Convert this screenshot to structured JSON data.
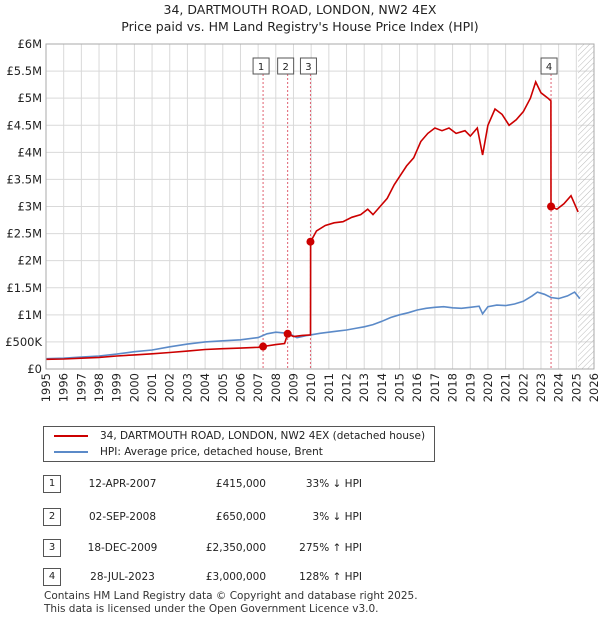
{
  "header": {
    "title": "34, DARTMOUTH ROAD, LONDON, NW2 4EX",
    "subtitle": "Price paid vs. HM Land Registry's House Price Index (HPI)"
  },
  "colors": {
    "property": "#cc0000",
    "hpi": "#5b8ac8",
    "grid": "#d9d9d9",
    "marker_line": "#e06070"
  },
  "legend": {
    "property_label": "34, DARTMOUTH ROAD, LONDON, NW2 4EX (detached house)",
    "hpi_label": "HPI: Average price, detached house, Brent"
  },
  "transactions": [
    {
      "num": "1",
      "date": "12-APR-2007",
      "price": "£415,000",
      "pct": "33% ↓ HPI",
      "hpi": "HPI"
    },
    {
      "num": "2",
      "date": "02-SEP-2008",
      "price": "£650,000",
      "pct": "3% ↓ HPI",
      "hpi": "HPI"
    },
    {
      "num": "3",
      "date": "18-DEC-2009",
      "price": "£2,350,000",
      "pct": "275% ↑ HPI",
      "hpi": "HPI"
    },
    {
      "num": "4",
      "date": "28-JUL-2023",
      "price": "£3,000,000",
      "pct": "128% ↑ HPI",
      "hpi": "HPI"
    }
  ],
  "footer": {
    "line1": "Contains HM Land Registry data © Copyright and database right 2025.",
    "line2": "This data is licensed under the Open Government Licence v3.0."
  },
  "chart_data": {
    "type": "line",
    "title": "34, DARTMOUTH ROAD, LONDON, NW2 4EX",
    "subtitle": "Price paid vs. HM Land Registry's House Price Index (HPI)",
    "xlim": [
      1995,
      2026
    ],
    "ylim": [
      0,
      6000000
    ],
    "x_ticks": [
      1995,
      1996,
      1997,
      1998,
      1999,
      2000,
      2001,
      2002,
      2003,
      2004,
      2005,
      2006,
      2007,
      2008,
      2009,
      2010,
      2011,
      2012,
      2013,
      2014,
      2015,
      2016,
      2017,
      2018,
      2019,
      2020,
      2021,
      2022,
      2023,
      2024,
      2025,
      2026
    ],
    "y_ticks": [
      {
        "value": 0,
        "label": "£0"
      },
      {
        "value": 500000,
        "label": "£500K"
      },
      {
        "value": 1000000,
        "label": "£1M"
      },
      {
        "value": 1500000,
        "label": "£1.5M"
      },
      {
        "value": 2000000,
        "label": "£2M"
      },
      {
        "value": 2500000,
        "label": "£2.5M"
      },
      {
        "value": 3000000,
        "label": "£3M"
      },
      {
        "value": 3500000,
        "label": "£3.5M"
      },
      {
        "value": 4000000,
        "label": "£4M"
      },
      {
        "value": 4500000,
        "label": "£4.5M"
      },
      {
        "value": 5000000,
        "label": "£5M"
      },
      {
        "value": 5500000,
        "label": "£5.5M"
      },
      {
        "value": 6000000,
        "label": "£6M"
      }
    ],
    "grid": true,
    "legend_position": "below",
    "series": [
      {
        "name": "34, DARTMOUTH ROAD, LONDON, NW2 4EX (detached house)",
        "color": "#cc0000",
        "points": [
          [
            1995.0,
            180000
          ],
          [
            1996.0,
            185000
          ],
          [
            1997.0,
            200000
          ],
          [
            1998.0,
            215000
          ],
          [
            1999.0,
            240000
          ],
          [
            2000.0,
            260000
          ],
          [
            2001.0,
            280000
          ],
          [
            2002.0,
            305000
          ],
          [
            2003.0,
            330000
          ],
          [
            2004.0,
            360000
          ],
          [
            2005.0,
            375000
          ],
          [
            2006.0,
            385000
          ],
          [
            2007.0,
            400000
          ],
          [
            2007.28,
            415000
          ],
          [
            2008.0,
            450000
          ],
          [
            2008.5,
            470000
          ],
          [
            2008.67,
            650000
          ],
          [
            2009.0,
            600000
          ],
          [
            2009.5,
            620000
          ],
          [
            2009.96,
            630000
          ],
          [
            2009.97,
            2350000
          ],
          [
            2010.3,
            2550000
          ],
          [
            2010.8,
            2650000
          ],
          [
            2011.3,
            2700000
          ],
          [
            2011.8,
            2720000
          ],
          [
            2012.3,
            2800000
          ],
          [
            2012.8,
            2850000
          ],
          [
            2013.2,
            2950000
          ],
          [
            2013.5,
            2850000
          ],
          [
            2013.9,
            3000000
          ],
          [
            2014.3,
            3150000
          ],
          [
            2014.7,
            3400000
          ],
          [
            2015.0,
            3550000
          ],
          [
            2015.4,
            3750000
          ],
          [
            2015.8,
            3900000
          ],
          [
            2016.2,
            4200000
          ],
          [
            2016.6,
            4350000
          ],
          [
            2017.0,
            4450000
          ],
          [
            2017.4,
            4400000
          ],
          [
            2017.8,
            4450000
          ],
          [
            2018.2,
            4350000
          ],
          [
            2018.7,
            4400000
          ],
          [
            2019.0,
            4300000
          ],
          [
            2019.4,
            4450000
          ],
          [
            2019.7,
            3950000
          ],
          [
            2020.0,
            4500000
          ],
          [
            2020.4,
            4800000
          ],
          [
            2020.8,
            4700000
          ],
          [
            2021.2,
            4500000
          ],
          [
            2021.6,
            4600000
          ],
          [
            2022.0,
            4750000
          ],
          [
            2022.4,
            5000000
          ],
          [
            2022.7,
            5300000
          ],
          [
            2023.0,
            5100000
          ],
          [
            2023.4,
            5000000
          ],
          [
            2023.56,
            4950000
          ],
          [
            2023.57,
            3000000
          ],
          [
            2023.9,
            2950000
          ],
          [
            2024.3,
            3050000
          ],
          [
            2024.7,
            3200000
          ],
          [
            2025.1,
            2900000
          ]
        ]
      },
      {
        "name": "HPI: Average price, detached house, Brent",
        "color": "#5b8ac8",
        "points": [
          [
            1995.0,
            190000
          ],
          [
            1996.0,
            200000
          ],
          [
            1997.0,
            220000
          ],
          [
            1998.0,
            240000
          ],
          [
            1999.0,
            275000
          ],
          [
            2000.0,
            320000
          ],
          [
            2001.0,
            350000
          ],
          [
            2002.0,
            410000
          ],
          [
            2003.0,
            460000
          ],
          [
            2004.0,
            500000
          ],
          [
            2005.0,
            520000
          ],
          [
            2006.0,
            540000
          ],
          [
            2007.0,
            580000
          ],
          [
            2007.5,
            650000
          ],
          [
            2008.0,
            680000
          ],
          [
            2008.7,
            660000
          ],
          [
            2009.2,
            580000
          ],
          [
            2009.8,
            620000
          ],
          [
            2010.5,
            660000
          ],
          [
            2011.0,
            680000
          ],
          [
            2011.5,
            700000
          ],
          [
            2012.0,
            720000
          ],
          [
            2012.5,
            750000
          ],
          [
            2013.0,
            780000
          ],
          [
            2013.5,
            820000
          ],
          [
            2014.0,
            880000
          ],
          [
            2014.5,
            950000
          ],
          [
            2015.0,
            1000000
          ],
          [
            2015.5,
            1040000
          ],
          [
            2016.0,
            1090000
          ],
          [
            2016.5,
            1120000
          ],
          [
            2017.0,
            1140000
          ],
          [
            2017.5,
            1150000
          ],
          [
            2018.0,
            1130000
          ],
          [
            2018.5,
            1120000
          ],
          [
            2019.0,
            1140000
          ],
          [
            2019.5,
            1160000
          ],
          [
            2019.7,
            1020000
          ],
          [
            2020.0,
            1150000
          ],
          [
            2020.5,
            1180000
          ],
          [
            2021.0,
            1170000
          ],
          [
            2021.5,
            1200000
          ],
          [
            2022.0,
            1250000
          ],
          [
            2022.5,
            1350000
          ],
          [
            2022.8,
            1420000
          ],
          [
            2023.2,
            1380000
          ],
          [
            2023.57,
            1320000
          ],
          [
            2024.0,
            1300000
          ],
          [
            2024.5,
            1350000
          ],
          [
            2024.9,
            1420000
          ],
          [
            2025.2,
            1300000
          ]
        ]
      }
    ],
    "transactions": [
      {
        "label": "1",
        "x": 2007.28,
        "value": 415000
      },
      {
        "label": "2",
        "x": 2008.67,
        "value": 650000
      },
      {
        "label": "3",
        "x": 2009.96,
        "value": 2350000
      },
      {
        "label": "4",
        "x": 2023.57,
        "value": 3000000
      }
    ]
  }
}
